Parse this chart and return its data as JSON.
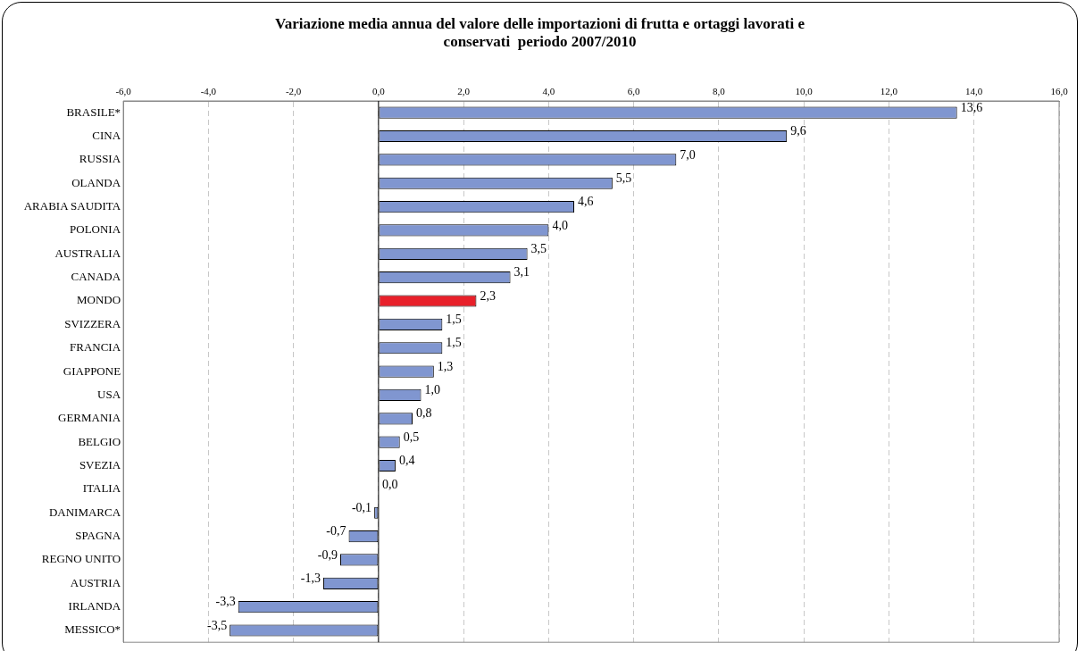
{
  "chart_data": {
    "type": "bar",
    "orientation": "horizontal",
    "title": [
      "Variazione media annua del valore delle importazioni di frutta e ortaggi lavorati e",
      "conservati  periodo 2007/2010"
    ],
    "categories": [
      "BRASILE*",
      "CINA",
      "RUSSIA",
      "OLANDA",
      "ARABIA SAUDITA",
      "POLONIA",
      "AUSTRALIA",
      "CANADA",
      "MONDO",
      "SVIZZERA",
      "FRANCIA",
      "GIAPPONE",
      "USA",
      "GERMANIA",
      "BELGIO",
      "SVEZIA",
      "ITALIA",
      "DANIMARCA",
      "SPAGNA",
      "REGNO UNITO",
      "AUSTRIA",
      "IRLANDA",
      "MESSICO*"
    ],
    "values": [
      13.6,
      9.6,
      7.0,
      5.5,
      4.6,
      4.0,
      3.5,
      3.1,
      2.3,
      1.5,
      1.5,
      1.3,
      1.0,
      0.8,
      0.5,
      0.4,
      0.0,
      -0.1,
      -0.7,
      -0.9,
      -1.3,
      -3.3,
      -3.5
    ],
    "value_labels": [
      "13,6",
      "9,6",
      "7,0",
      "5,5",
      "4,6",
      "4,0",
      "3,5",
      "3,1",
      "2,3",
      "1,5",
      "1,5",
      "1,3",
      "1,0",
      "0,8",
      "0,5",
      "0,4",
      "0,0",
      "-0,1",
      "-0,7",
      "-0,9",
      "-1,3",
      "-3,3",
      "-3,5"
    ],
    "colors": [
      "#8096d0",
      "#8096d0",
      "#8096d0",
      "#8096d0",
      "#8096d0",
      "#8096d0",
      "#8096d0",
      "#8096d0",
      "#e8202a",
      "#8096d0",
      "#8096d0",
      "#8096d0",
      "#8096d0",
      "#8096d0",
      "#8096d0",
      "#8096d0",
      "#8096d0",
      "#8096d0",
      "#8096d0",
      "#8096d0",
      "#8096d0",
      "#8096d0",
      "#8096d0"
    ],
    "xlim": [
      -6,
      16
    ],
    "xticks": [
      {
        "value": -6,
        "label": "-6,0"
      },
      {
        "value": -4,
        "label": "-4,0"
      },
      {
        "value": -2,
        "label": "-2,0"
      },
      {
        "value": 0,
        "label": "0,0"
      },
      {
        "value": 2,
        "label": "2,0"
      },
      {
        "value": 4,
        "label": "4,0"
      },
      {
        "value": 6,
        "label": "6,0"
      },
      {
        "value": 8,
        "label": "8,0"
      },
      {
        "value": 10,
        "label": "10,0"
      },
      {
        "value": 12,
        "label": "12,0"
      },
      {
        "value": 14,
        "label": "14,0"
      },
      {
        "value": 16,
        "label": "16,0"
      }
    ],
    "grid": "x",
    "legend": false
  }
}
